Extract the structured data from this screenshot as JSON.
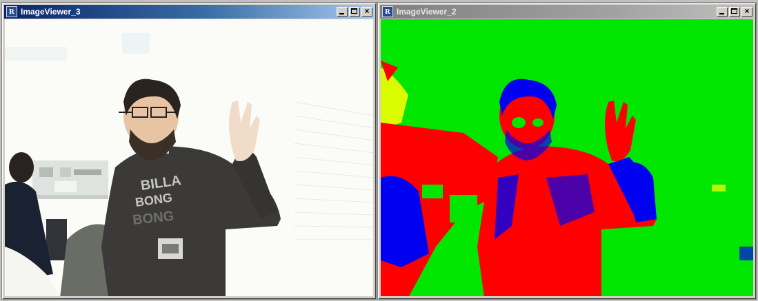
{
  "windows": [
    {
      "id": "win3",
      "title": "ImageViewer_3",
      "state": "active",
      "content": "camera feed"
    },
    {
      "id": "win2",
      "title": "ImageViewer_2",
      "state": "inactive",
      "content": "color segmentation"
    }
  ],
  "icons": {
    "app": "app-r-icon",
    "minimize": "minimize-icon",
    "maximize": "maximize-icon",
    "close": "close-icon"
  },
  "colors": {
    "active_titlebar": "#0a246a",
    "inactive_titlebar": "#808080",
    "segment_background": "#00e600",
    "segment_red": "#ff0000",
    "segment_blue": "#0000f0",
    "segment_yellow": "#ffff00"
  }
}
